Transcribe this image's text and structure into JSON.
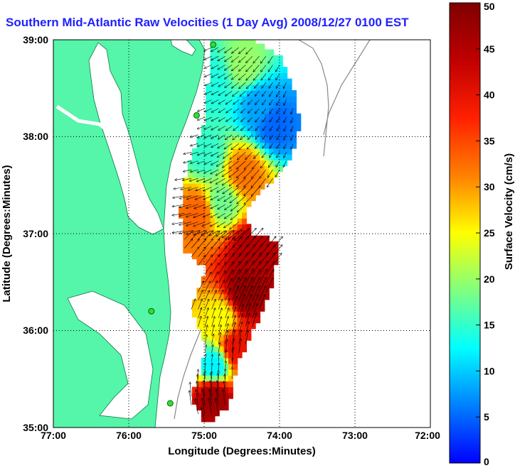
{
  "chart_data": {
    "type": "heatmap",
    "title": "Southern Mid-Atlantic Raw Velocities (1 Day Avg) 2008/12/27 0100 EST",
    "xlabel": "Longitude (Degrees:Minutes)",
    "ylabel": "Latitude (Degrees:Minutes)",
    "x_ticks": [
      "77:00",
      "76:00",
      "75:00",
      "74:00",
      "73:00",
      "72:00"
    ],
    "y_ticks": [
      "39:00",
      "38:00",
      "37:00",
      "36:00",
      "35:00"
    ],
    "xlim": [
      -77,
      -72
    ],
    "ylim": [
      35,
      39
    ],
    "grid": true,
    "colorbar": {
      "label": "Surface Velocity (cm/s)",
      "ticks": [
        "0",
        "5",
        "10",
        "15",
        "20",
        "25",
        "30",
        "35",
        "40",
        "45",
        "50"
      ],
      "range": [
        0,
        50
      ]
    },
    "regions": [
      {
        "lon": -74.9,
        "lat": 38.55,
        "speed": 14
      },
      {
        "lon": -74.5,
        "lat": 38.7,
        "speed": 20
      },
      {
        "lon": -74.3,
        "lat": 38.3,
        "speed": 8
      },
      {
        "lon": -74.1,
        "lat": 38.1,
        "speed": 5
      },
      {
        "lon": -74.5,
        "lat": 37.6,
        "speed": 32
      },
      {
        "lon": -75.0,
        "lat": 37.8,
        "speed": 15
      },
      {
        "lon": -75.1,
        "lat": 37.2,
        "speed": 33
      },
      {
        "lon": -74.8,
        "lat": 37.3,
        "speed": 18
      },
      {
        "lon": -74.4,
        "lat": 36.8,
        "speed": 45
      },
      {
        "lon": -74.5,
        "lat": 36.35,
        "speed": 48
      },
      {
        "lon": -74.8,
        "lat": 36.1,
        "speed": 25
      },
      {
        "lon": -74.6,
        "lat": 35.8,
        "speed": 40
      },
      {
        "lon": -74.9,
        "lat": 35.6,
        "speed": 12
      },
      {
        "lon": -74.9,
        "lat": 35.3,
        "speed": 47
      }
    ],
    "sites": [
      {
        "lon": -74.88,
        "lat": 38.95
      },
      {
        "lon": -75.1,
        "lat": 38.22
      },
      {
        "lon": -75.7,
        "lat": 36.2
      },
      {
        "lon": -75.45,
        "lat": 35.25
      }
    ]
  }
}
